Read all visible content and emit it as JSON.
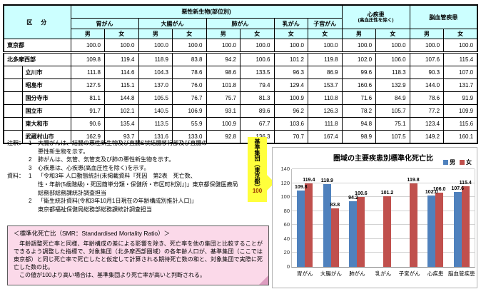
{
  "colors": {
    "male": "#4f81bd",
    "female": "#c0504d",
    "highlight": "#ffff00",
    "header_bg": "#ccffff",
    "callout_bg": "#ffff3c",
    "box_bg": "#fbd9e9"
  },
  "table": {
    "corner_label": "区　分",
    "col_groups": [
      {
        "label": "悪性新生物(部位別)",
        "sub": "",
        "span": 8
      },
      {
        "label": "心疾患",
        "sub": "(高血圧性を除く)",
        "span": 2
      },
      {
        "label": "脳血管疾患",
        "sub": "",
        "span": 2
      }
    ],
    "disease_headers": [
      {
        "label": "胃がん",
        "span": 2
      },
      {
        "label": "大腸がん",
        "span": 2
      },
      {
        "label": "肺がん",
        "span": 2
      },
      {
        "label": "乳がん",
        "span": 1
      },
      {
        "label": "子宮がん",
        "span": 1
      }
    ],
    "sex_headers": [
      "男",
      "女",
      "男",
      "女",
      "男",
      "女",
      "女",
      "女",
      "男",
      "女",
      "男",
      "女"
    ],
    "rows": [
      {
        "label": "東京都",
        "indent": false,
        "separator": true,
        "values": [
          "100.0",
          "100.0",
          "100.0",
          "100.0",
          "100.0",
          "100.0",
          "100.0",
          "100.0",
          "100.0",
          "100.0",
          "100.0",
          "100.0"
        ]
      },
      {
        "label": "北多摩西部",
        "indent": false,
        "values": [
          "109.8",
          "119.4",
          "118.9",
          "83.8",
          "94.2",
          "100.6",
          "101.2",
          "119.8",
          "102.0",
          "106.0",
          "107.6",
          "115.4"
        ]
      },
      {
        "label": "立川市",
        "indent": true,
        "values": [
          "111.8",
          "114.6",
          "104.3",
          "78.6",
          "98.6",
          "133.5",
          "96.3",
          "86.9",
          "99.6",
          "118.3",
          "90.3",
          "107.0"
        ]
      },
      {
        "label": "昭島市",
        "indent": true,
        "highlights": [
          1,
          6,
          7
        ],
        "values": [
          "127.5",
          "115.1",
          "137.0",
          "76.0",
          "101.8",
          "79.4",
          "129.4",
          "153.7",
          "160.6",
          "132.9",
          "144.0",
          "131.7"
        ]
      },
      {
        "label": "国分寺市",
        "indent": true,
        "values": [
          "81.1",
          "144.8",
          "105.5",
          "76.7",
          "75.7",
          "81.3",
          "100.9",
          "110.8",
          "71.6",
          "84.9",
          "78.6",
          "91.9"
        ]
      },
      {
        "label": "国立市",
        "indent": true,
        "values": [
          "91.7",
          "102.1",
          "140.5",
          "106.9",
          "93.1",
          "89.6",
          "96.2",
          "126.3",
          "78.2",
          "105.7",
          "77.2",
          "109.9"
        ]
      },
      {
        "label": "東大和市",
        "indent": true,
        "values": [
          "90.6",
          "135.4",
          "113.5",
          "55.9",
          "100.9",
          "67.7",
          "103.6",
          "111.8",
          "94.8",
          "75.1",
          "123.4",
          "115.6"
        ]
      },
      {
        "label": "武蔵村山市",
        "indent": true,
        "values": [
          "162.9",
          "93.7",
          "131.6",
          "133.0",
          "92.8",
          "136.3",
          "70.7",
          "167.4",
          "98.9",
          "107.5",
          "149.2",
          "160.1"
        ]
      }
    ]
  },
  "notes": {
    "blocks": [
      {
        "label": "注釈：",
        "lines": [
          {
            "num": "1",
            "text": "大腸がんは、結腸の悪性新生物及び直腸S状結腸移行部及び直腸の"
          },
          {
            "num": "",
            "text": "悪性新生物を示す。"
          },
          {
            "num": "2",
            "text": "肺がんは、気管、気管支及び肺の悪性新生物を示す。"
          },
          {
            "num": "3",
            "text": "心疾患は、心疾患(高血圧性を除く)を示す。"
          }
        ]
      },
      {
        "label": "資料：",
        "lines": [
          {
            "num": "1",
            "text": "「令和3年 人口動態統計(未掲載資料『死因　第2表　死亡数、"
          },
          {
            "num": "",
            "text": "性・年齢(5歳階級)・死因簡単分類・保健所・市区町村別』)」東京都保健医療局"
          },
          {
            "num": "",
            "text": "総務部総務課統計調査担当"
          },
          {
            "num": "2",
            "text": "「衛生統計資料(令和3年10月1日現在の年齢構成別推計人口)」"
          },
          {
            "num": "",
            "text": "東京都福祉保健局総務部総務課統計調査担当"
          }
        ]
      }
    ]
  },
  "callout": {
    "text": "基準集団（東京都）",
    "value": "100"
  },
  "chart_data": {
    "type": "bar",
    "title": "圏域の主要疾患別標準化死亡比",
    "categories": [
      "胃がん",
      "大腸がん",
      "肺がん",
      "乳がん",
      "子宮がん",
      "心疾患",
      "脳血管疾患"
    ],
    "series": [
      {
        "name": "男",
        "color": "#4f81bd",
        "values": [
          109.8,
          118.9,
          94.2,
          null,
          null,
          102.0,
          107.6
        ]
      },
      {
        "name": "女",
        "color": "#c0504d",
        "values": [
          119.4,
          83.8,
          100.6,
          101.2,
          119.8,
          106.0,
          115.4
        ]
      }
    ],
    "ylim": [
      0,
      140
    ],
    "yticks": [
      0,
      20,
      40,
      60,
      80,
      100,
      120,
      140
    ],
    "grid": true,
    "legend_position": "top-right",
    "data_labels": true
  },
  "smr_box": {
    "title": "＜標準化死亡比（SMR：Standardised Mortality Ratio）＞",
    "paragraphs": [
      "　年齢調整死亡率と同様、年齢構成の差による影響を除き、死亡率を他の集団と比較することができるよう調整した指標で、対象集団（北多摩西部圏域）の各年齢人口が、基準集団（ここでは東京都）と同じ死亡率で死亡したと仮定して計算される期待死亡数の和と、対象集団で実際に死亡した数の比。",
      "　この値が100より高い場合は、基準集団より死亡率が高いと判断される。"
    ]
  }
}
